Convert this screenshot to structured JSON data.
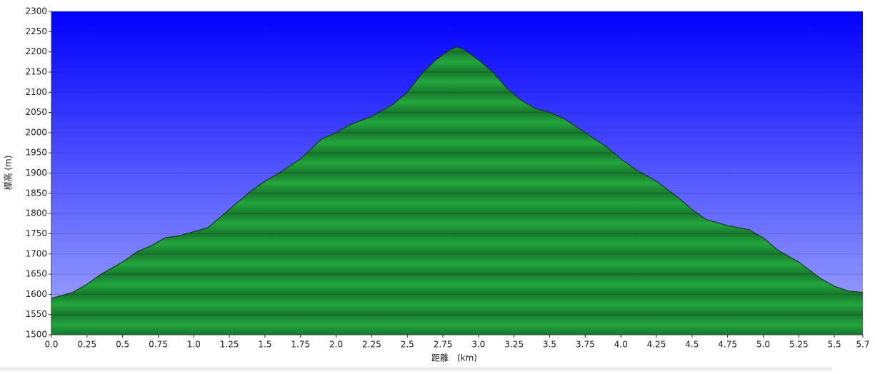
{
  "chart_data": {
    "type": "area",
    "x_label": "距離　(km)",
    "y_label": "標高 (m)",
    "x": [
      0.0,
      0.15,
      0.25,
      0.35,
      0.5,
      0.6,
      0.7,
      0.8,
      0.9,
      1.0,
      1.1,
      1.2,
      1.3,
      1.4,
      1.5,
      1.6,
      1.75,
      1.9,
      2.0,
      2.1,
      2.25,
      2.4,
      2.5,
      2.6,
      2.7,
      2.8,
      2.85,
      2.9,
      3.0,
      3.1,
      3.2,
      3.3,
      3.4,
      3.5,
      3.6,
      3.75,
      3.9,
      4.0,
      4.1,
      4.25,
      4.4,
      4.5,
      4.6,
      4.75,
      4.9,
      5.0,
      5.1,
      5.25,
      5.4,
      5.5,
      5.6,
      5.7
    ],
    "values": [
      1590,
      1605,
      1625,
      1650,
      1680,
      1705,
      1720,
      1740,
      1745,
      1755,
      1765,
      1795,
      1825,
      1855,
      1880,
      1900,
      1935,
      1985,
      2000,
      2020,
      2040,
      2070,
      2100,
      2145,
      2180,
      2205,
      2212,
      2205,
      2180,
      2150,
      2110,
      2080,
      2060,
      2050,
      2035,
      2000,
      1965,
      1935,
      1910,
      1880,
      1840,
      1810,
      1785,
      1770,
      1760,
      1740,
      1710,
      1680,
      1640,
      1620,
      1608,
      1605
    ],
    "color": "#22a63e",
    "xlim": [
      0,
      5.7
    ],
    "xticks": [
      {
        "value": 0,
        "label": "0.0"
      },
      0.25,
      0.5,
      0.75,
      {
        "value": 1,
        "label": "1.0"
      },
      1.25,
      1.5,
      1.75,
      {
        "value": 2,
        "label": "2.0"
      },
      2.25,
      2.5,
      2.75,
      {
        "value": 3,
        "label": "3.0"
      },
      3.25,
      3.5,
      3.75,
      {
        "value": 4,
        "label": "4.0"
      },
      4.25,
      4.5,
      4.75,
      {
        "value": 5,
        "label": "5.0"
      },
      5.25,
      5.5,
      5.7
    ],
    "ylim": [
      1500,
      2300
    ],
    "yticks": [
      1500,
      1550,
      1600,
      1650,
      1700,
      1750,
      1800,
      1850,
      1900,
      1950,
      2000,
      2050,
      2100,
      2150,
      2200,
      2250,
      2300
    ],
    "grid": true
  }
}
